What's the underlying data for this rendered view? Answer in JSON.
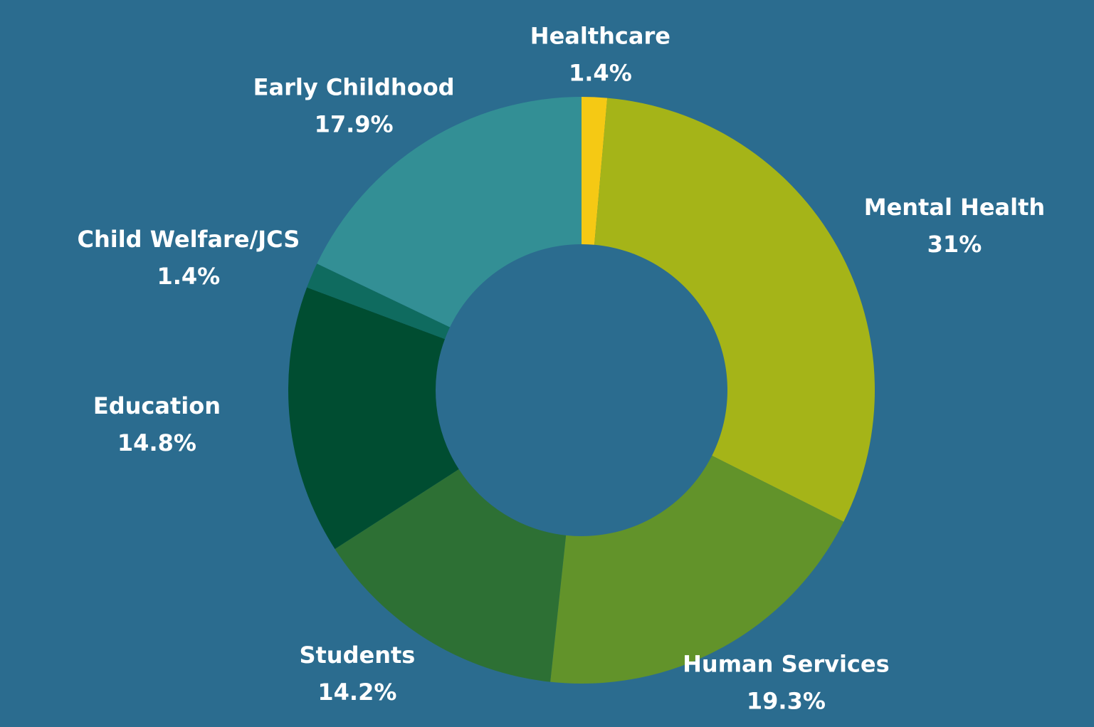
{
  "chart_data": {
    "type": "donut",
    "categories": [
      "Healthcare",
      "Mental Health",
      "Human Services",
      "Students",
      "Education",
      "Child Welfare/JCS",
      "Early Childhood"
    ],
    "values": [
      1.4,
      31,
      19.3,
      14.2,
      14.8,
      1.4,
      17.9
    ],
    "value_labels": [
      "1.4%",
      "31%",
      "19.3%",
      "14.2%",
      "14.8%",
      "1.4%",
      "17.9%"
    ],
    "colors": [
      "#f5c914",
      "#a5b418",
      "#62932a",
      "#2d7034",
      "#004d31",
      "#0f6b5f",
      "#338f95"
    ]
  }
}
